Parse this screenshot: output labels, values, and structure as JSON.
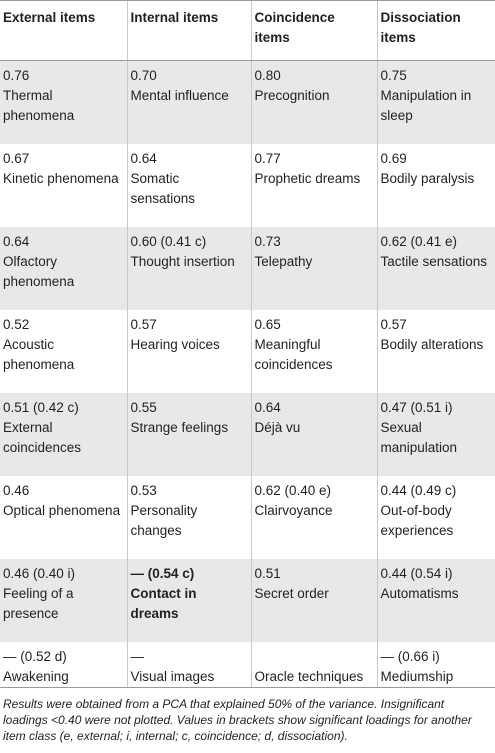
{
  "table": {
    "headers": [
      "External items",
      "Internal items",
      "Coincidence items",
      "Dissociation items"
    ],
    "rows": [
      [
        {
          "value": "0.76",
          "label": "Thermal phenomena"
        },
        {
          "value": "0.70",
          "label": "Mental influence"
        },
        {
          "value": "0.80",
          "label": "Precognition"
        },
        {
          "value": "0.75",
          "label": "Manipulation in sleep"
        }
      ],
      [
        {
          "value": "0.67",
          "label": "Kinetic phenomena"
        },
        {
          "value": "0.64",
          "label": "Somatic sensations"
        },
        {
          "value": "0.77",
          "label": "Prophetic dreams"
        },
        {
          "value": "0.69",
          "label": "Bodily paralysis"
        }
      ],
      [
        {
          "value": "0.64",
          "label": "Olfactory phenomena"
        },
        {
          "value": "0.60 (0.41 c)",
          "label": "Thought insertion"
        },
        {
          "value": "0.73",
          "label": "Telepathy"
        },
        {
          "value": "0.62 (0.41 e)",
          "label": "Tactile sensations"
        }
      ],
      [
        {
          "value": "0.52",
          "label": "Acoustic phenomena"
        },
        {
          "value": "0.57",
          "label": "Hearing voices"
        },
        {
          "value": "0.65",
          "label": "Meaningful coincidences"
        },
        {
          "value": "0.57",
          "label": "Bodily alterations"
        }
      ],
      [
        {
          "value": "0.51 (0.42 c)",
          "label": "External coincidences"
        },
        {
          "value": "0.55",
          "label": "Strange feelings"
        },
        {
          "value": "0.64",
          "label": "Déjà vu"
        },
        {
          "value": "0.47 (0.51 i)",
          "label": "Sexual manipulation"
        }
      ],
      [
        {
          "value": "0.46",
          "label": "Optical phenomena"
        },
        {
          "value": "0.53",
          "label": "Personality changes"
        },
        {
          "value": "0.62 (0.40 e)",
          "label": "Clairvoyance"
        },
        {
          "value": "0.44 (0.49 c)",
          "label": "Out-of-body experiences"
        }
      ],
      [
        {
          "value": "0.46 (0.40 i)",
          "label": "Feeling of a presence"
        },
        {
          "value": "— (0.54 c)",
          "label": "Contact in dreams",
          "bold": true
        },
        {
          "value": "0.51",
          "label": "Secret order"
        },
        {
          "value": "0.44 (0.54 i)",
          "label": "Automatisms"
        }
      ],
      [
        {
          "value": "— (0.52 d)",
          "label": "Awakening"
        },
        {
          "value": "—",
          "label": "Visual images"
        },
        {
          "value": "",
          "label": "Oracle techniques"
        },
        {
          "value": "— (0.66 i)",
          "label": "Mediumship"
        }
      ]
    ]
  },
  "footnote": "Results were obtained from a PCA that explained 50% of the variance. Insignificant loadings <0.40 were not plotted. Values in brackets show significant loadings for another item class (e, external; i, internal; c, coincidence; d, dissociation).",
  "colors": {
    "stripe": "#e7e8e9",
    "text": "#231f20",
    "rule": "#9a9a9a"
  }
}
